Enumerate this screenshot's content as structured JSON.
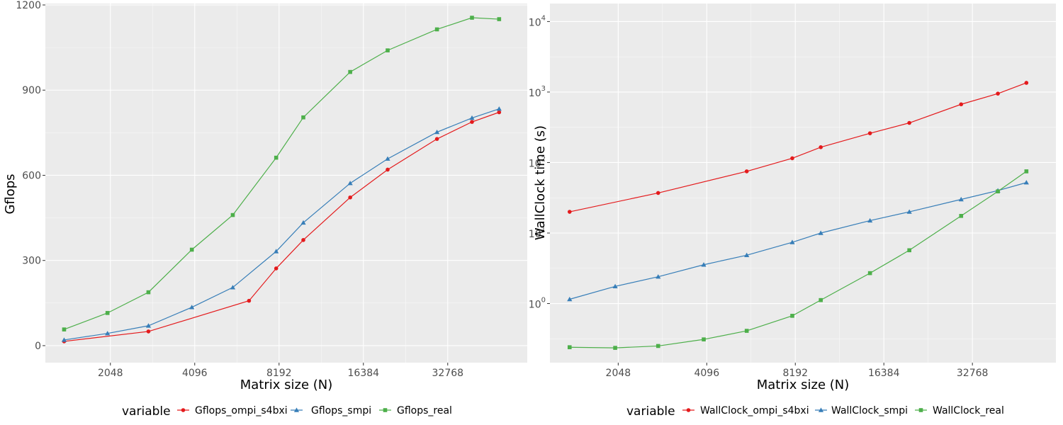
{
  "colors": {
    "ompi_s4bxi": "#e41a1c",
    "smpi": "#377eb8",
    "real": "#4daf4a",
    "panel": "#ebebeb",
    "grid": "#ffffff"
  },
  "chart_data": [
    {
      "type": "line",
      "x_scale": "log2",
      "y_scale": "linear",
      "xlabel": "Matrix size (N)",
      "ylabel": "Gflops",
      "x_ticks": [
        2048,
        4096,
        8192,
        16384,
        32768
      ],
      "x_tick_labels": [
        "2048",
        "4096",
        "8192",
        "16384",
        "32768"
      ],
      "y_ticks": [
        0,
        300,
        600,
        900,
        1200
      ],
      "y_tick_labels": [
        "0",
        "300",
        "600",
        "900",
        "1200"
      ],
      "xlim": [
        1200,
        63000
      ],
      "ylim": [
        -60,
        1205
      ],
      "legend": {
        "title": "variable",
        "position": "bottom",
        "entries": [
          "Gflops_ompi_s4bxi",
          "Gflops_smpi",
          "Gflops_real"
        ]
      },
      "grid": true,
      "series": [
        {
          "name": "Gflops_ompi_s4bxi",
          "color": "#e41a1c",
          "marker": "circle",
          "x": [
            1400,
            2800,
            6400,
            8000,
            10000,
            14700,
            20000,
            30000,
            40000,
            50000
          ],
          "y": [
            15,
            50,
            158,
            272,
            372,
            522,
            620,
            728,
            788,
            822
          ]
        },
        {
          "name": "Gflops_smpi",
          "color": "#377eb8",
          "marker": "triangle",
          "x": [
            1400,
            2000,
            2800,
            4000,
            5600,
            8000,
            10000,
            14700,
            20000,
            30000,
            40000,
            50000
          ],
          "y": [
            20,
            43,
            70,
            135,
            205,
            332,
            433,
            572,
            658,
            752,
            802,
            834
          ]
        },
        {
          "name": "Gflops_real",
          "color": "#4daf4a",
          "marker": "square",
          "x": [
            1400,
            2000,
            2800,
            4000,
            5600,
            8000,
            10000,
            14700,
            20000,
            30000,
            40000,
            50000
          ],
          "y": [
            57,
            115,
            188,
            338,
            460,
            662,
            804,
            964,
            1040,
            1114,
            1155,
            1150
          ]
        }
      ]
    },
    {
      "type": "line",
      "x_scale": "log2",
      "y_scale": "log10",
      "xlabel": "Matrix size (N)",
      "ylabel": "WallClock time (s)",
      "x_ticks": [
        2048,
        4096,
        8192,
        16384,
        32768
      ],
      "x_tick_labels": [
        "2048",
        "4096",
        "8192",
        "16384",
        "32768"
      ],
      "y_ticks": [
        1,
        10,
        100,
        1000,
        10000
      ],
      "y_tick_labels": [
        {
          "base": "10",
          "exp": "0"
        },
        {
          "base": "10",
          "exp": "1"
        },
        {
          "base": "10",
          "exp": "2"
        },
        {
          "base": "10",
          "exp": "3"
        },
        {
          "base": "10",
          "exp": "4"
        }
      ],
      "xlim": [
        1200,
        63000
      ],
      "ylim": [
        0.145,
        18000
      ],
      "legend": {
        "title": "variable",
        "position": "bottom",
        "entries": [
          "WallClock_ompi_s4bxi",
          "WallClock_smpi",
          "WallClock_real"
        ]
      },
      "grid": true,
      "series": [
        {
          "name": "WallClock_ompi_s4bxi",
          "color": "#e41a1c",
          "marker": "circle",
          "x": [
            1400,
            2800,
            5600,
            8000,
            10000,
            14700,
            20000,
            30000,
            40000,
            50000
          ],
          "y": [
            20,
            37,
            75,
            115,
            165,
            260,
            365,
            670,
            950,
            1350
          ]
        },
        {
          "name": "WallClock_smpi",
          "color": "#377eb8",
          "marker": "triangle",
          "x": [
            1400,
            2000,
            2800,
            4000,
            5600,
            8000,
            10000,
            14700,
            20000,
            30000,
            40000,
            50000
          ],
          "y": [
            1.15,
            1.75,
            2.4,
            3.55,
            4.85,
            7.4,
            10,
            15,
            20,
            30,
            40,
            52
          ]
        },
        {
          "name": "WallClock_real",
          "color": "#4daf4a",
          "marker": "square",
          "x": [
            1400,
            2000,
            2800,
            4000,
            5600,
            8000,
            10000,
            14700,
            20000,
            30000,
            40000,
            50000
          ],
          "y": [
            0.24,
            0.235,
            0.25,
            0.31,
            0.41,
            0.67,
            1.12,
            2.7,
            5.7,
            17.5,
            39,
            75
          ]
        }
      ]
    }
  ]
}
